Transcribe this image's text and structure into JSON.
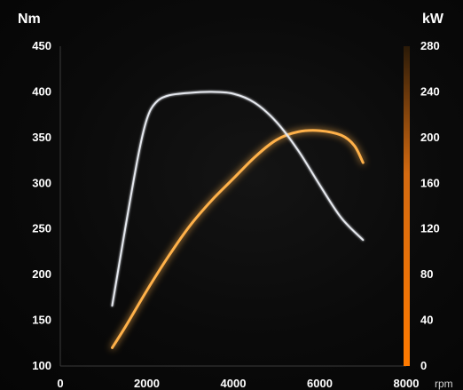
{
  "chart_data": {
    "type": "line",
    "left_axis": {
      "label": "Nm",
      "range": [
        100,
        450
      ],
      "ticks": [
        "100",
        "150",
        "200",
        "250",
        "300",
        "350",
        "400",
        "450"
      ]
    },
    "right_axis": {
      "label": "kW",
      "range": [
        0,
        280
      ],
      "ticks": [
        "0",
        "40",
        "80",
        "120",
        "160",
        "200",
        "240",
        "280"
      ],
      "bar_color": "#ff8a1e"
    },
    "x_axis": {
      "label": "rpm",
      "range": [
        0,
        8000
      ],
      "ticks": [
        "0",
        "2000",
        "4000",
        "6000",
        "8000"
      ]
    },
    "series": [
      {
        "axis": "left",
        "color": "#e6e9ef",
        "x": [
          1200,
          1500,
          1800,
          2000,
          2200,
          2500,
          3000,
          3500,
          4000,
          4500,
          5000,
          5500,
          6000,
          6500,
          7000
        ],
        "y": [
          166,
          250,
          330,
          370,
          388,
          396,
          399,
          400,
          398,
          388,
          367,
          336,
          298,
          262,
          238
        ]
      },
      {
        "axis": "right",
        "color": "#ffb14a",
        "x": [
          1200,
          1500,
          2000,
          2500,
          3000,
          3500,
          4000,
          4500,
          5000,
          5500,
          6000,
          6500,
          6800,
          7000
        ],
        "y": [
          16,
          34,
          66,
          96,
          123,
          145,
          164,
          183,
          198,
          205,
          206,
          202,
          193,
          178
        ]
      }
    ],
    "grid": false
  }
}
